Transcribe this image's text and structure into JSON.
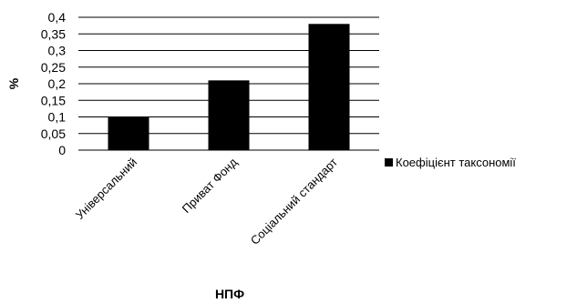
{
  "chart_data": {
    "type": "bar",
    "title": "",
    "xlabel": "НПФ",
    "ylabel": "%",
    "categories": [
      "Універсальний",
      "Приват Фонд",
      "Соціальний стандарт"
    ],
    "series": [
      {
        "name": "Коефіцієнт таксономії",
        "values": [
          0.1,
          0.21,
          0.38
        ],
        "color": "#000000"
      }
    ],
    "ylim": [
      0,
      0.4
    ],
    "yticks": [
      "0",
      "0,05",
      "0,1",
      "0,15",
      "0,2",
      "0,25",
      "0,3",
      "0,35",
      "0,4"
    ],
    "grid": true,
    "legend_position": "right"
  }
}
